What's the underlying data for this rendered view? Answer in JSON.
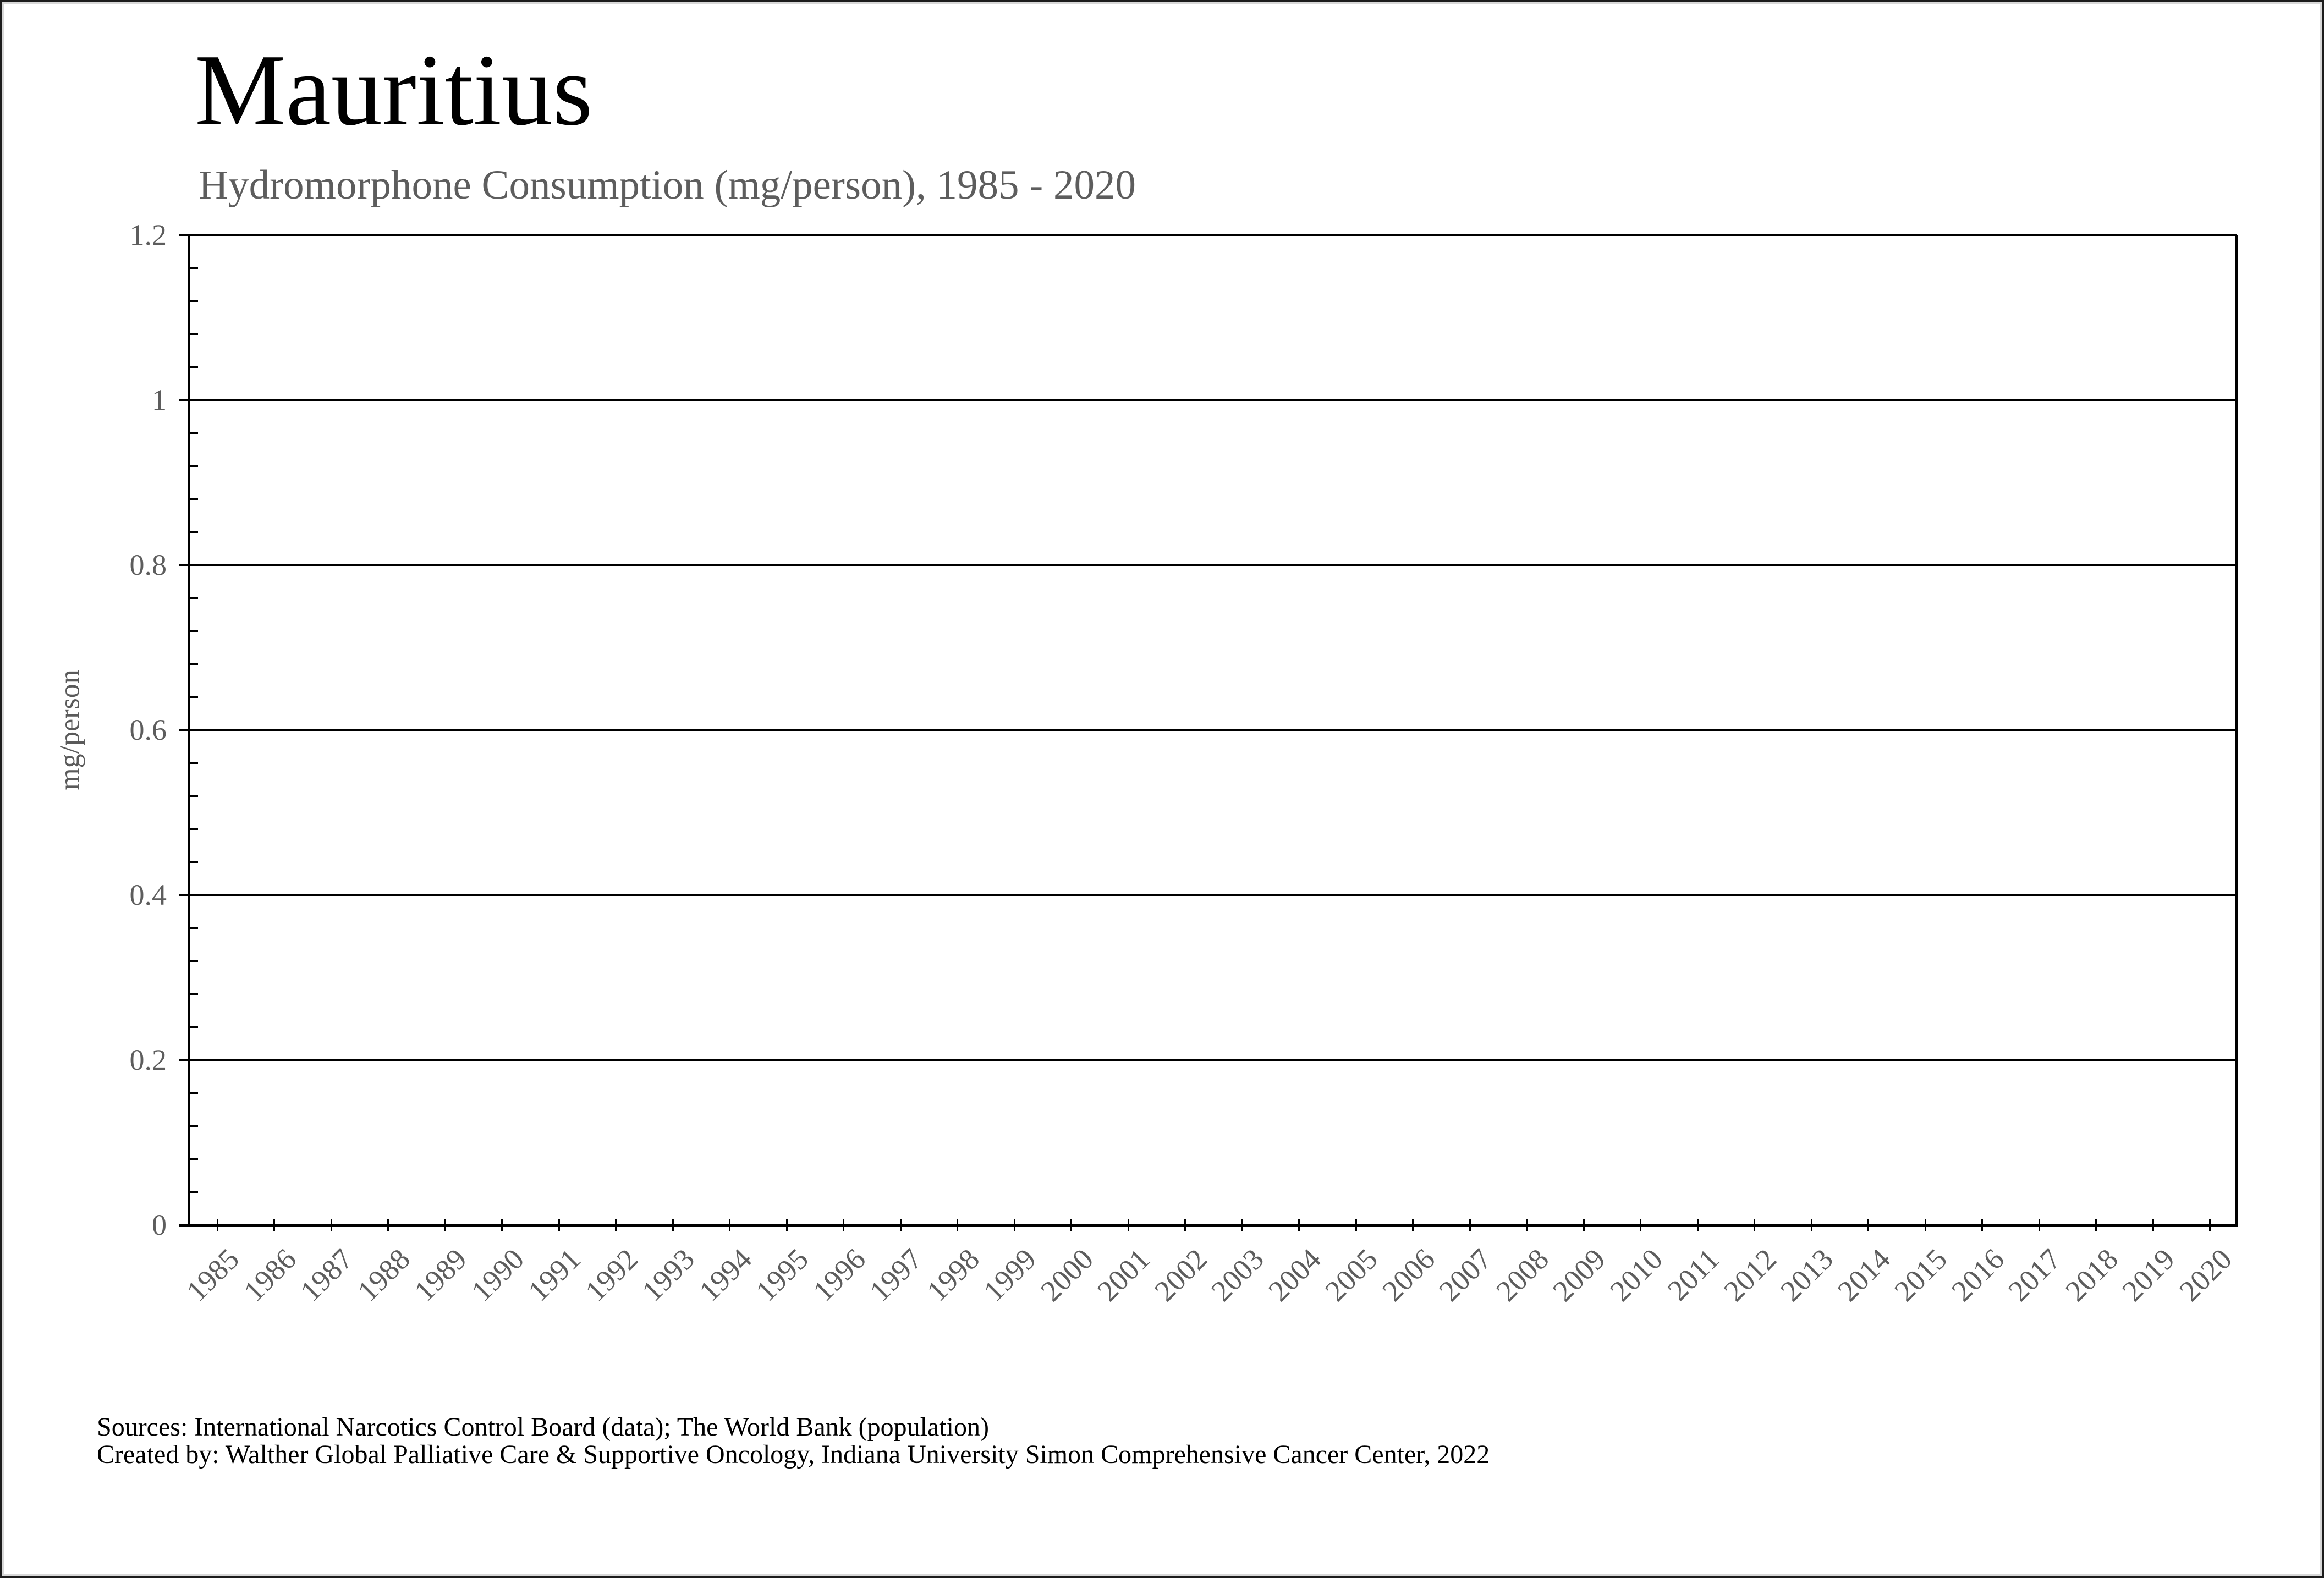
{
  "figure": {
    "title": "Mauritius",
    "subtitle": "Hydromorphone Consumption (mg/person), 1985 - 2020"
  },
  "y_axis": {
    "label": "mg/person",
    "tick_labels": [
      "1.2",
      "1",
      "0.8",
      "0.6",
      "0.4",
      "0.2",
      "0"
    ]
  },
  "x_axis": {
    "tick_labels": [
      "1985",
      "1986",
      "1987",
      "1988",
      "1989",
      "1990",
      "1991",
      "1992",
      "1993",
      "1994",
      "1995",
      "1996",
      "1997",
      "1998",
      "1999",
      "2000",
      "2001",
      "2002",
      "2003",
      "2004",
      "2005",
      "2006",
      "2007",
      "2008",
      "2009",
      "2010",
      "2011",
      "2012",
      "2013",
      "2014",
      "2015",
      "2016",
      "2017",
      "2018",
      "2019",
      "2020"
    ]
  },
  "footer": {
    "line1": "Sources: International Narcotics Control Board (data); The World Bank (population)",
    "line2": "Created by: Walther Global Palliative Care & Supportive Oncology, Indiana University Simon Comprehensive Cancer Center, 2022"
  },
  "colors": {
    "background": "#ffffff",
    "axis": "#000000",
    "title_text": "#000000",
    "muted_text": "#5d5d5d",
    "outer_border": "#1c1c1c",
    "outer_border_inner_edge": "#d8d8d8"
  },
  "chart_data": {
    "type": "line",
    "title": "Mauritius",
    "subtitle": "Hydromorphone Consumption (mg/person), 1985 - 2020",
    "xlabel": "",
    "ylabel": "mg/person",
    "x": [
      1985,
      1986,
      1987,
      1988,
      1989,
      1990,
      1991,
      1992,
      1993,
      1994,
      1995,
      1996,
      1997,
      1998,
      1999,
      2000,
      2001,
      2002,
      2003,
      2004,
      2005,
      2006,
      2007,
      2008,
      2009,
      2010,
      2011,
      2012,
      2013,
      2014,
      2015,
      2016,
      2017,
      2018,
      2019,
      2020
    ],
    "series": [],
    "plotted_points": "none - chart area is empty (no data drawn)",
    "ylim": [
      0,
      1.2
    ],
    "y_major_ticks": [
      0,
      0.2,
      0.4,
      0.6,
      0.8,
      1.0,
      1.2
    ],
    "y_minor_tick_step": 0.04,
    "grid": "horizontal major gridlines only",
    "legend": "none"
  }
}
